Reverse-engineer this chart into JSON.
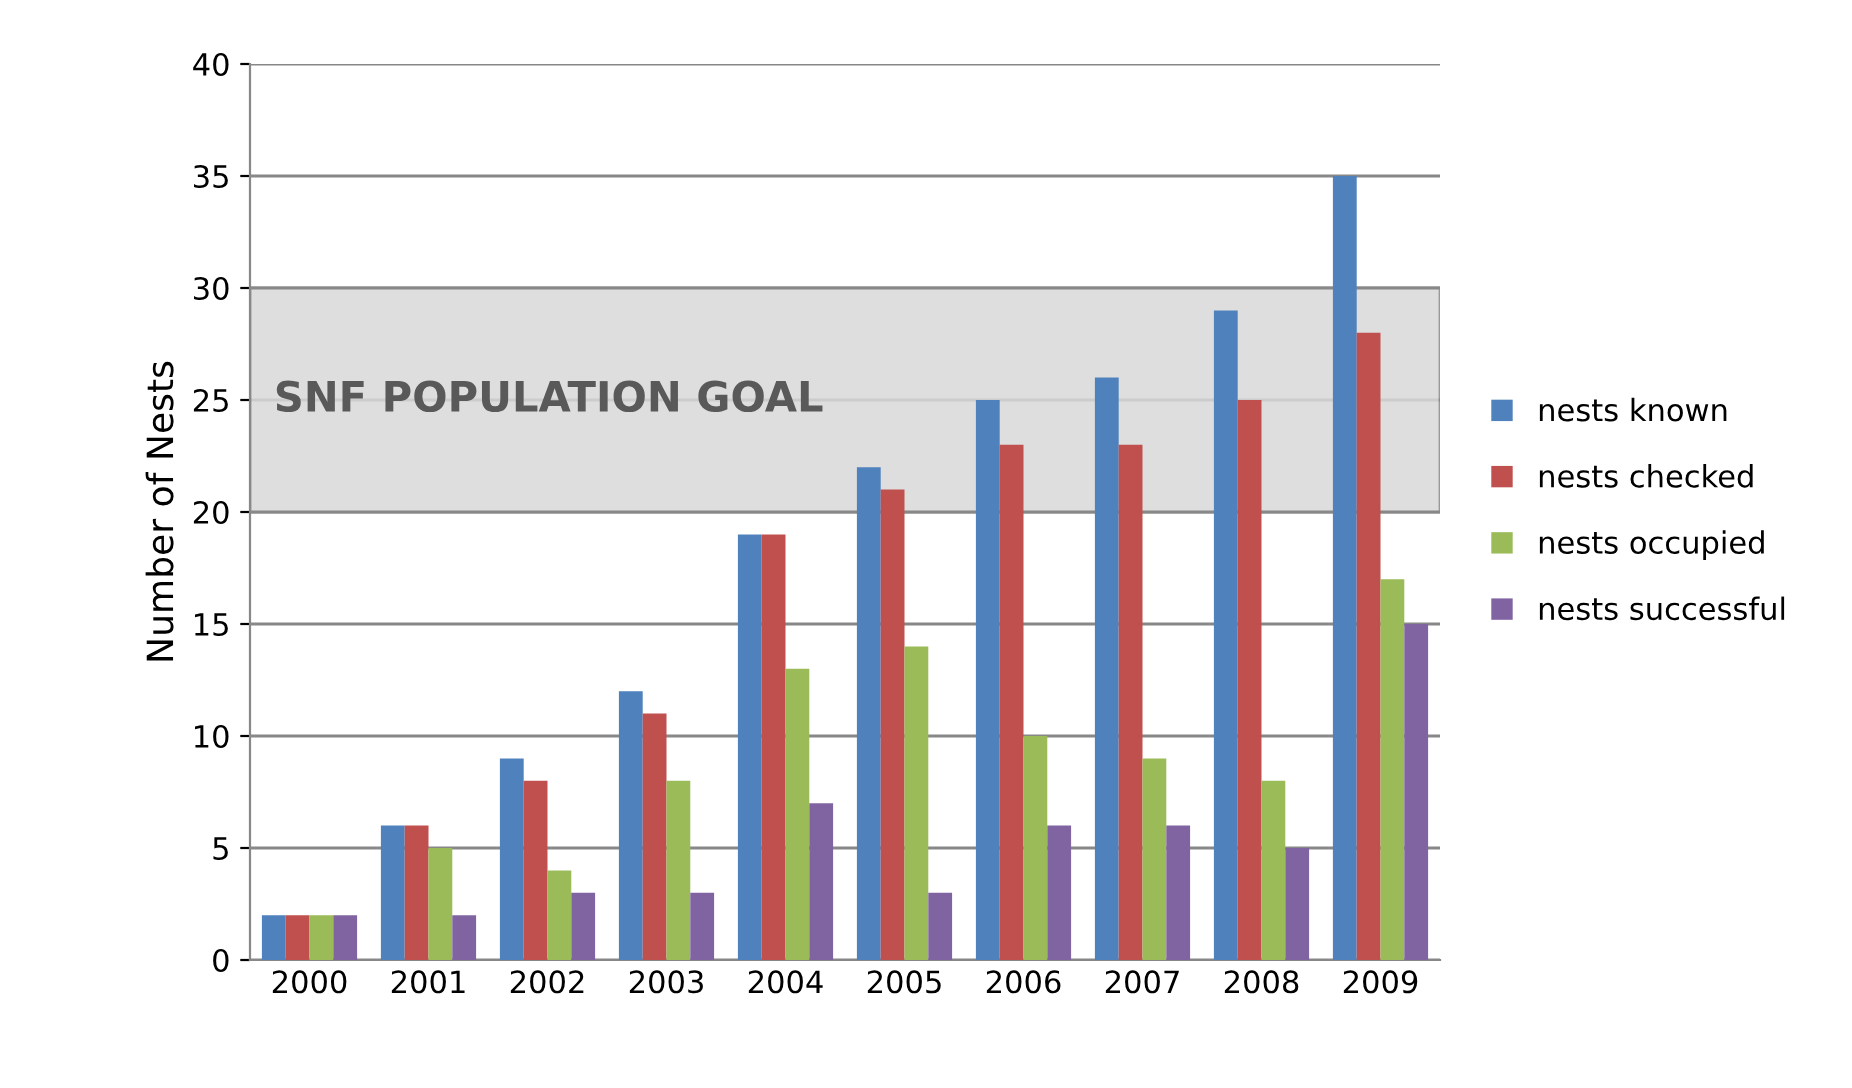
{
  "chart_data": {
    "type": "bar",
    "ylabel": "Number of Nests",
    "categories": [
      "2000",
      "2001",
      "2002",
      "2003",
      "2004",
      "2005",
      "2006",
      "2007",
      "2008",
      "2009"
    ],
    "series": [
      {
        "name": "nests known",
        "color": "#4f81bd",
        "values": [
          2,
          6,
          9,
          12,
          19,
          22,
          25,
          26,
          29,
          35
        ]
      },
      {
        "name": "nests checked",
        "color": "#c0504d",
        "values": [
          2,
          6,
          8,
          11,
          19,
          21,
          23,
          23,
          25,
          28
        ]
      },
      {
        "name": "nests occupied",
        "color": "#9bbb59",
        "values": [
          2,
          5,
          4,
          8,
          13,
          14,
          10,
          9,
          8,
          17
        ]
      },
      {
        "name": "nests successful",
        "color": "#8064a2",
        "values": [
          2,
          2,
          3,
          3,
          7,
          3,
          6,
          6,
          5,
          15
        ]
      }
    ],
    "ylim": [
      0,
      40
    ],
    "yticks": [
      0,
      5,
      10,
      15,
      20,
      25,
      30,
      35,
      40
    ],
    "grid": "y",
    "legend": "right",
    "bands": [
      {
        "axis": "y",
        "from": 20,
        "to": 30,
        "label": "SNF POPULATION GOAL",
        "color": "#d9d9d9"
      }
    ]
  }
}
